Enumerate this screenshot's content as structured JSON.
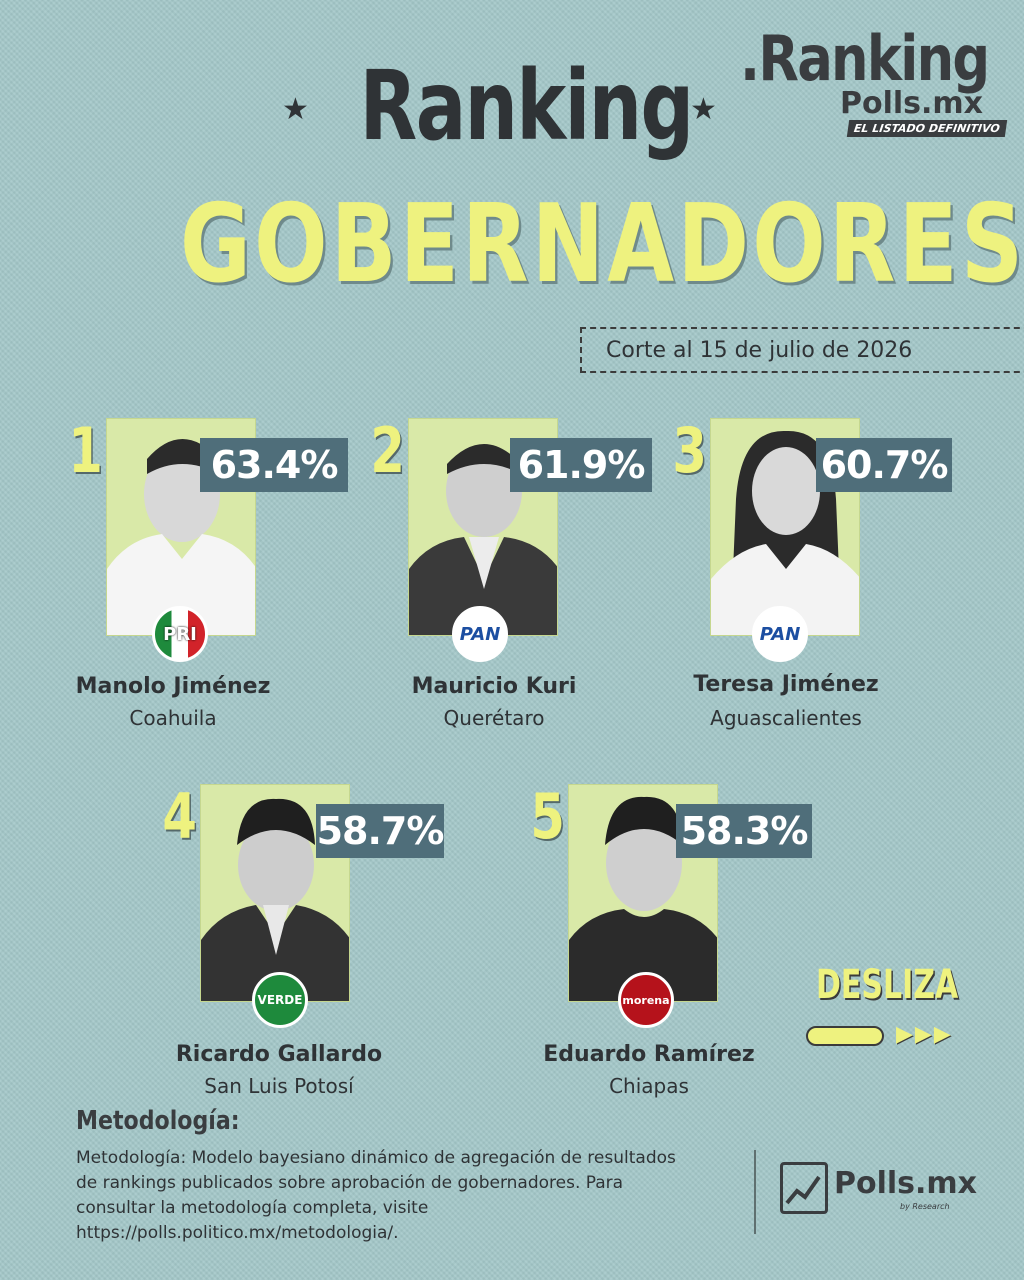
{
  "header": {
    "title_top": "Ranking",
    "title_main": "GOBERNADORES",
    "star": "★",
    "logo_title": ".Ranking",
    "logo_sub": "Polls.mx",
    "logo_tag": "EL LISTADO DEFINITIVO",
    "date_cut": "Corte al 15 de julio de 2026"
  },
  "candidates": [
    {
      "rank": "1",
      "percent": "63.4%",
      "name": "Manolo Jiménez",
      "state": "Coahuila",
      "party": "PRI"
    },
    {
      "rank": "2",
      "percent": "61.9%",
      "name": "Mauricio Kuri",
      "state": "Querétaro",
      "party": "PAN"
    },
    {
      "rank": "3",
      "percent": "60.7%",
      "name": "Teresa Jiménez",
      "state": "Aguascalientes",
      "party": "PAN"
    },
    {
      "rank": "4",
      "percent": "58.7%",
      "name": "Ricardo Gallardo",
      "state": "San Luis Potosí",
      "party": "VERDE"
    },
    {
      "rank": "5",
      "percent": "58.3%",
      "name": "Eduardo Ramírez",
      "state": "Chiapas",
      "party": "morena"
    }
  ],
  "swipe": {
    "label": "DESLIZA",
    "arrows": "▶▶▶"
  },
  "methodology": {
    "title": "Metodología:",
    "body": "Metodología: Modelo bayesiano dinámico de agregación de resultados de rankings publicados sobre aprobación de gobernadores. Para consultar la metodología completa, visite https://polls.politico.mx/metodologia/."
  },
  "footer": {
    "brand": "Polls.mx",
    "sub": "by Research"
  },
  "colors": {
    "background": "#a4c8c9",
    "accent_yellow": "#eef27f",
    "percent_bg": "#4f6e7a",
    "photo_bg": "#d9e9a8"
  },
  "icons": {
    "party_logos": [
      "pri-logo-icon",
      "pan-logo-icon",
      "verde-logo-icon",
      "morena-logo-icon"
    ],
    "silhouette": "person-silhouette-icon"
  }
}
